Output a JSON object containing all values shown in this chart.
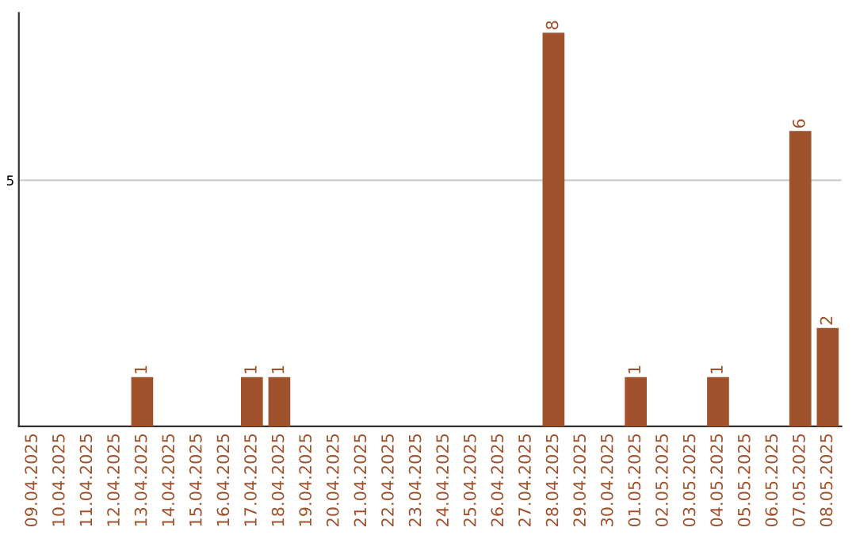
{
  "chart_data": {
    "type": "bar",
    "categories": [
      "09.04.2025",
      "10.04.2025",
      "11.04.2025",
      "12.04.2025",
      "13.04.2025",
      "14.04.2025",
      "15.04.2025",
      "16.04.2025",
      "17.04.2025",
      "18.04.2025",
      "19.04.2025",
      "20.04.2025",
      "21.04.2025",
      "22.04.2025",
      "23.04.2025",
      "24.04.2025",
      "25.04.2025",
      "26.04.2025",
      "27.04.2025",
      "28.04.2025",
      "29.04.2025",
      "30.04.2025",
      "01.05.2025",
      "02.05.2025",
      "03.05.2025",
      "04.05.2025",
      "05.05.2025",
      "06.05.2025",
      "07.05.2025",
      "08.05.2025"
    ],
    "values": [
      0,
      0,
      0,
      0,
      1,
      0,
      0,
      0,
      1,
      1,
      0,
      0,
      0,
      0,
      0,
      0,
      0,
      0,
      0,
      8,
      0,
      0,
      1,
      0,
      0,
      1,
      0,
      0,
      6,
      2
    ],
    "color": "#a0522d",
    "value_labels": [
      null,
      null,
      null,
      null,
      "1",
      null,
      null,
      null,
      "1",
      "1",
      null,
      null,
      null,
      null,
      null,
      null,
      null,
      null,
      null,
      "8",
      null,
      null,
      "1",
      null,
      null,
      "1",
      null,
      null,
      "6",
      "2"
    ],
    "ylim": [
      0,
      8.4
    ],
    "yticks": [
      5
    ],
    "grid": "y"
  }
}
